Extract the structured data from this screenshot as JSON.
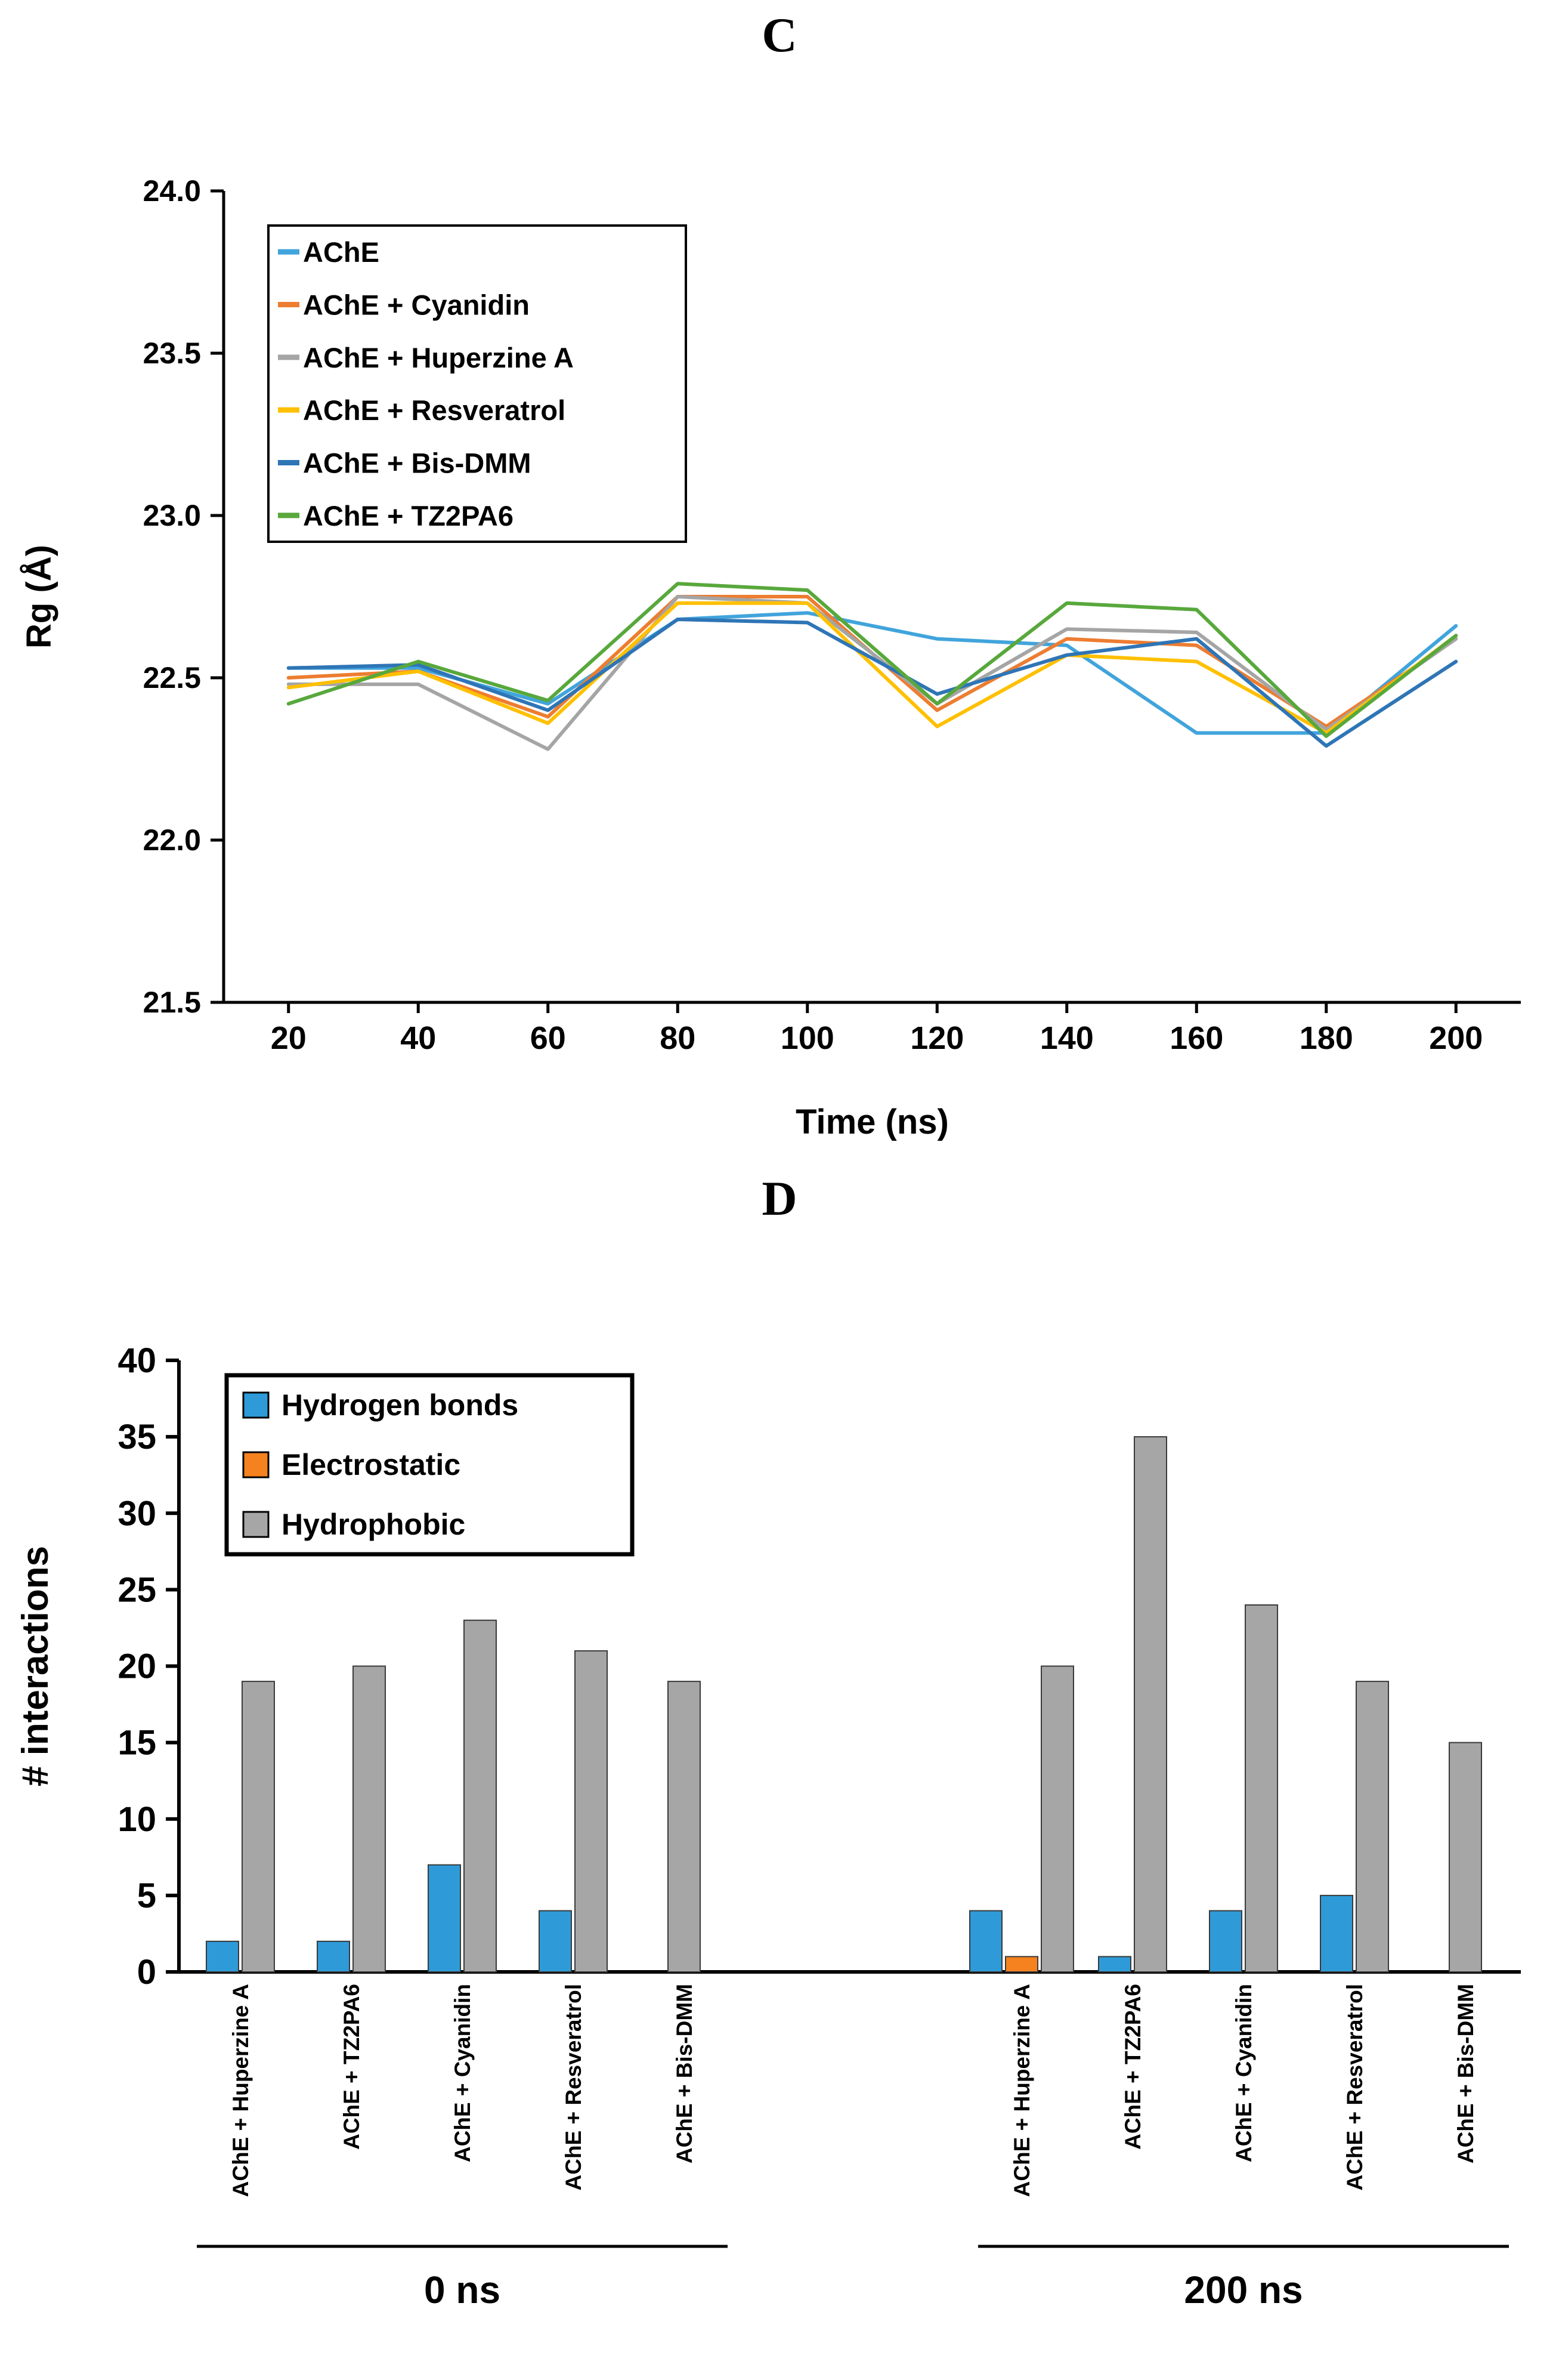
{
  "panels": [
    {
      "label": "C"
    },
    {
      "label": "D"
    }
  ],
  "colors": {
    "ache": "#41A4DC",
    "cyanidin": "#ED7D31",
    "huperzine": "#A5A5A5",
    "resveratrol": "#FFC000",
    "bis_dmm": "#2E75B6",
    "tz2pa6": "#58A83C",
    "hydrogen_bonds": "#2E9BD8",
    "electrostatic": "#F5821F",
    "hydrophobic": "#A6A6A6",
    "axis": "#000000"
  },
  "chart_data": [
    {
      "type": "line",
      "title": "",
      "xlabel": "Time (ns)",
      "ylabel": "Rg (Å)",
      "x": [
        20,
        40,
        60,
        80,
        100,
        120,
        140,
        160,
        180,
        200
      ],
      "xlim": [
        10,
        210
      ],
      "ylim": [
        21.5,
        24.0
      ],
      "yticks": [
        21.5,
        22.0,
        22.5,
        23.0,
        23.5,
        24.0
      ],
      "grid": false,
      "legend_position": "top-left",
      "series": [
        {
          "name": "AChE",
          "color": "#41A4DC",
          "values": [
            22.53,
            22.53,
            22.42,
            22.68,
            22.7,
            22.62,
            22.6,
            22.33,
            22.33,
            22.66
          ]
        },
        {
          "name": "AChE + Cyanidin",
          "color": "#ED7D31",
          "values": [
            22.5,
            22.52,
            22.38,
            22.75,
            22.75,
            22.4,
            22.62,
            22.6,
            22.35,
            22.62
          ]
        },
        {
          "name": "AChE + Huperzine A",
          "color": "#A5A5A5",
          "values": [
            22.48,
            22.48,
            22.28,
            22.75,
            22.73,
            22.42,
            22.65,
            22.64,
            22.34,
            22.62
          ]
        },
        {
          "name": "AChE + Resveratrol",
          "color": "#FFC000",
          "values": [
            22.47,
            22.52,
            22.36,
            22.73,
            22.73,
            22.35,
            22.57,
            22.55,
            22.33,
            22.63
          ]
        },
        {
          "name": "AChE + Bis-DMM",
          "color": "#2E75B6",
          "values": [
            22.53,
            22.54,
            22.4,
            22.68,
            22.67,
            22.45,
            22.57,
            22.62,
            22.29,
            22.55
          ]
        },
        {
          "name": "AChE + TZ2PA6",
          "color": "#58A83C",
          "values": [
            22.42,
            22.55,
            22.43,
            22.79,
            22.77,
            22.42,
            22.73,
            22.71,
            22.32,
            22.63
          ]
        }
      ]
    },
    {
      "type": "bar",
      "title": "",
      "xlabel": "",
      "ylabel": "# interactions",
      "ylim": [
        0,
        40
      ],
      "yticks": [
        0,
        5,
        10,
        15,
        20,
        25,
        30,
        35,
        40
      ],
      "grid": false,
      "legend_position": "top-left",
      "groups": [
        {
          "label": "0 ns",
          "categories": [
            "AChE + Huperzine A",
            "AChE + TZ2PA6",
            "AChE + Cyanidin",
            "AChE + Resveratrol",
            "AChE + Bis-DMM"
          ]
        },
        {
          "label": "200 ns",
          "categories": [
            "AChE + Huperzine A",
            "AChE + TZ2PA6",
            "AChE + Cyanidin",
            "AChE + Resveratrol",
            "AChE + Bis-DMM"
          ]
        }
      ],
      "series": [
        {
          "name": "Hydrogen bonds",
          "color": "#2E9BD8",
          "values": [
            [
              2,
              2,
              7,
              4,
              0
            ],
            [
              4,
              1,
              4,
              5,
              0
            ]
          ]
        },
        {
          "name": "Electrostatic",
          "color": "#F5821F",
          "values": [
            [
              0,
              0,
              0,
              0,
              0
            ],
            [
              1,
              0,
              0,
              0,
              0
            ]
          ]
        },
        {
          "name": "Hydrophobic",
          "color": "#A6A6A6",
          "values": [
            [
              19,
              20,
              23,
              21,
              19
            ],
            [
              20,
              35,
              24,
              19,
              15
            ]
          ]
        }
      ]
    }
  ]
}
